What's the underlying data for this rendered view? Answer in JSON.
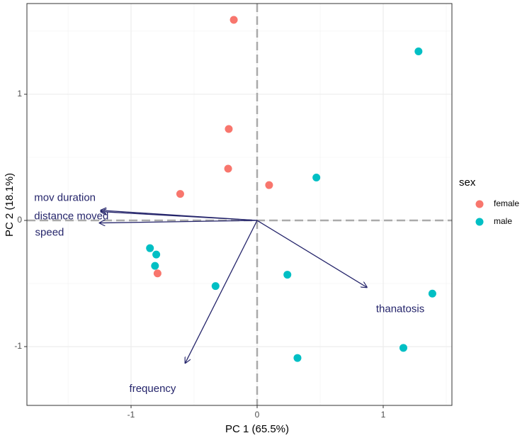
{
  "chart_data": {
    "type": "biplot",
    "xlabel": "PC 1 (65.5%)",
    "ylabel": "PC 2 (18.1%)",
    "xlim": [
      -1.826,
      1.545
    ],
    "ylim": [
      -1.466,
      1.719
    ],
    "xticks": [
      -1,
      0,
      1
    ],
    "yticks": [
      -1,
      0,
      1
    ],
    "grid": true,
    "legend_title": "sex",
    "legend_position": "right",
    "series": [
      {
        "name": "female",
        "color": "#f8766d",
        "x": [
          -0.185,
          -0.225,
          -0.23,
          -0.61,
          0.095,
          -0.79
        ],
        "values": [
          1.59,
          0.725,
          0.41,
          0.21,
          0.28,
          -0.42
        ]
      },
      {
        "name": "male",
        "color": "#00bfc4",
        "x": [
          1.28,
          0.47,
          -0.85,
          -0.8,
          -0.81,
          -0.33,
          0.24,
          1.39,
          1.16,
          0.32
        ],
        "values": [
          1.34,
          0.34,
          -0.22,
          -0.27,
          -0.36,
          -0.52,
          -0.43,
          -0.58,
          -1.01,
          -1.09
        ]
      }
    ],
    "loading_color": "#25256b",
    "loadings": [
      {
        "name": "mov duration",
        "x": -1.24,
        "y": 0.08
      },
      {
        "name": "distance moved",
        "x": -1.24,
        "y": 0.07
      },
      {
        "name": "speed",
        "x": -1.25,
        "y": -0.02
      },
      {
        "name": "thanatosis",
        "x": 0.87,
        "y": -0.53
      },
      {
        "name": "frequency",
        "x": -0.57,
        "y": -1.13
      }
    ]
  }
}
